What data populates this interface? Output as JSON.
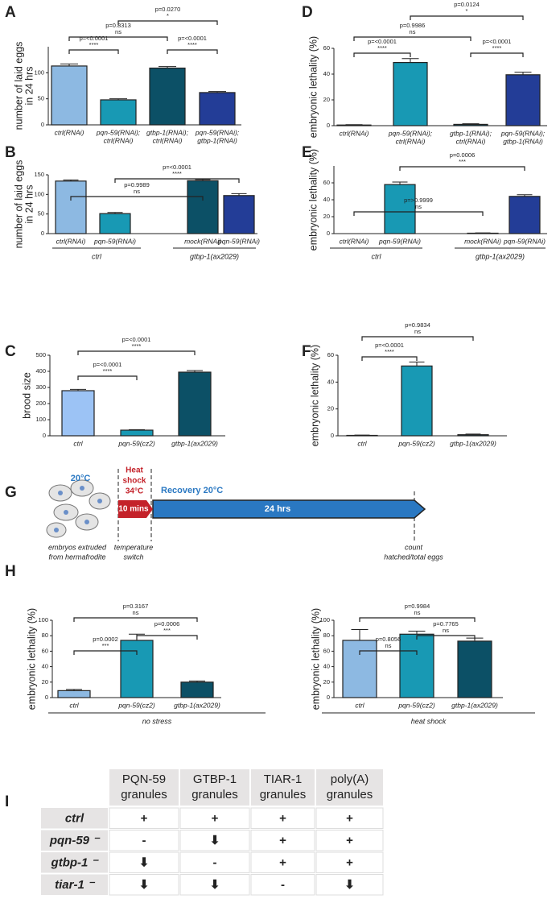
{
  "chart_data": [
    {
      "type": "bar",
      "panel": "A",
      "ylabel": [
        "number of laid eggs",
        "in 24 hrs"
      ],
      "categories": [
        [
          "ctrl(RNAi)"
        ],
        [
          "pqn-59(RNAi);",
          "ctrl(RNAi)"
        ],
        [
          "gtbp-1(RNAi);",
          "ctrl(RNAi)"
        ],
        [
          "pqn-59(RNAi);",
          "gtbp-1(RNAi)"
        ]
      ],
      "values": [
        113,
        48,
        109,
        62
      ],
      "errors": [
        4,
        2,
        3,
        2
      ],
      "colors": [
        "#8db9e2",
        "#1899b4",
        "#0c5066",
        "#233d97"
      ],
      "ylim": [
        0,
        150
      ],
      "yticks": [
        0,
        50,
        100
      ],
      "comparisons": [
        {
          "p": "p=<0.0001",
          "sig": "****"
        },
        {
          "p": "p=<0.0001",
          "sig": "****"
        },
        {
          "p": "p=0.8313",
          "sig": "ns"
        },
        {
          "p": "p=0.0270",
          "sig": "*"
        }
      ]
    },
    {
      "type": "bar",
      "panel": "B",
      "ylabel": [
        "number of laid eggs",
        "in 24 hrs"
      ],
      "categories": [
        [
          "ctrl(RNAi)"
        ],
        [
          "pqn-59(RNAi)"
        ],
        [
          "mock(RNAi)"
        ],
        [
          "pqn-59(RNAi)"
        ]
      ],
      "values": [
        134,
        51,
        135,
        97
      ],
      "errors": [
        3,
        3,
        3,
        5
      ],
      "colors": [
        "#8db9e2",
        "#1899b4",
        "#0c5066",
        "#233d97"
      ],
      "ylim": [
        0,
        150
      ],
      "yticks": [
        0,
        50,
        100,
        150
      ],
      "group_labels": [
        "ctrl",
        "gtbp-1(ax2029)"
      ],
      "comparisons": [
        {
          "p": "p=0.9989",
          "sig": "ns"
        },
        {
          "p": "p=<0.0001",
          "sig": "****"
        }
      ]
    },
    {
      "type": "bar",
      "panel": "C",
      "ylabel": [
        "brood size"
      ],
      "categories": [
        [
          "ctrl"
        ],
        [
          "pqn-59(cz2)"
        ],
        [
          "gtbp-1(ax2029)"
        ]
      ],
      "values": [
        280,
        35,
        395
      ],
      "errors": [
        8,
        3,
        10
      ],
      "colors": [
        "#9cc3f5",
        "#1899b4",
        "#0c5066"
      ],
      "ylim": [
        0,
        500
      ],
      "yticks": [
        0,
        100,
        200,
        300,
        400,
        500
      ],
      "comparisons": [
        {
          "p": "p=<0.0001",
          "sig": "****"
        },
        {
          "p": "p=<0.0001",
          "sig": "****"
        }
      ]
    },
    {
      "type": "bar",
      "panel": "D",
      "ylabel": [
        "embryonic lethality (%)"
      ],
      "categories": [
        [
          "ctrl(RNAi)"
        ],
        [
          "pqn-59(RNAi);",
          "ctrl(RNAi)"
        ],
        [
          "gtbp-1(RNAi);",
          "ctrl(RNAi)"
        ],
        [
          "pqn-59(RNAi);",
          "gtbp-1(RNAi)"
        ]
      ],
      "values": [
        0.5,
        49,
        1,
        39.5
      ],
      "errors": [
        0.3,
        3,
        0.5,
        2
      ],
      "colors": [
        "#8db9e2",
        "#1899b4",
        "#0c5066",
        "#233d97"
      ],
      "ylim": [
        0,
        60
      ],
      "yticks": [
        0,
        20,
        40,
        60
      ],
      "comparisons": [
        {
          "p": "p=<0.0001",
          "sig": "****"
        },
        {
          "p": "p=<0.0001",
          "sig": "****"
        },
        {
          "p": "p=0.9986",
          "sig": "ns"
        },
        {
          "p": "p=0.0124",
          "sig": "*"
        }
      ]
    },
    {
      "type": "bar",
      "panel": "E",
      "ylabel": [
        "embryonic lethality (%)"
      ],
      "categories": [
        [
          "ctrl(RNAi)"
        ],
        [
          "pqn-59(RNAi)"
        ],
        [
          "mock(RNAi)"
        ],
        [
          "pqn-59(RNAi)"
        ]
      ],
      "values": [
        0,
        58,
        0.5,
        44
      ],
      "errors": [
        0,
        3,
        0.3,
        2
      ],
      "colors": [
        "#8db9e2",
        "#1899b4",
        "#0c5066",
        "#233d97"
      ],
      "ylim": [
        0,
        80
      ],
      "yticks": [
        0,
        20,
        40,
        60
      ],
      "group_labels": [
        "ctrl",
        "gtbp-1(ax2029)"
      ],
      "comparisons": [
        {
          "p": "p=>0.9999",
          "sig": "ns"
        },
        {
          "p": "p=0.0006",
          "sig": "***"
        }
      ]
    },
    {
      "type": "bar",
      "panel": "F",
      "ylabel": [
        "embryonic lethality (%)"
      ],
      "categories": [
        [
          "ctrl"
        ],
        [
          "pqn-59(cz2)"
        ],
        [
          "gtbp-1(ax2029)"
        ]
      ],
      "values": [
        0.3,
        52,
        0.8
      ],
      "errors": [
        0.2,
        3,
        0.5
      ],
      "colors": [
        "#8db9e2",
        "#1899b4",
        "#0c5066"
      ],
      "ylim": [
        0,
        60
      ],
      "yticks": [
        0,
        20,
        40,
        60
      ],
      "comparisons": [
        {
          "p": "p=<0.0001",
          "sig": "****"
        },
        {
          "p": "p=0.9834",
          "sig": "ns"
        }
      ]
    },
    {
      "type": "bar",
      "panel": "H",
      "ylabel": [
        "embryonic lethality (%)"
      ],
      "categories": [
        [
          "ctrl"
        ],
        [
          "pqn-59(cz2)"
        ],
        [
          "gtbp-1(ax2029)"
        ]
      ],
      "values": [
        9,
        74,
        20
      ],
      "errors": [
        1.5,
        8,
        1.5
      ],
      "colors": [
        "#8db9e2",
        "#1899b4",
        "#0c5066"
      ],
      "ylim": [
        0,
        100
      ],
      "yticks": [
        0,
        20,
        40,
        60,
        80,
        100
      ],
      "group_labels": [
        "no stress"
      ],
      "comparisons": [
        {
          "p": "p=0.0002",
          "sig": "***"
        },
        {
          "p": "p=0.0006",
          "sig": "***"
        },
        {
          "p": "p=0.3167",
          "sig": "ns"
        }
      ]
    },
    {
      "type": "bar",
      "ylabel": [
        "embryonic lethality (%)"
      ],
      "categories": [
        [
          "ctrl"
        ],
        [
          "pqn-59(cz2)"
        ],
        [
          "gtbp-1(ax2029)"
        ]
      ],
      "values": [
        74,
        82,
        73
      ],
      "errors": [
        14,
        4,
        4
      ],
      "colors": [
        "#8db9e2",
        "#1899b4",
        "#0c5066"
      ],
      "ylim": [
        0,
        100
      ],
      "yticks": [
        0,
        20,
        40,
        60,
        80,
        100
      ],
      "group_labels": [
        "heat shock"
      ],
      "comparisons": [
        {
          "p": "p=0.8056",
          "sig": "ns"
        },
        {
          "p": "p=0.7765",
          "sig": "ns"
        },
        {
          "p": "p=0.9984",
          "sig": "ns"
        }
      ]
    }
  ],
  "diagram": {
    "panel": "G",
    "temp_start": "20°C",
    "heat_shock": [
      "Heat",
      "shock",
      "34°C"
    ],
    "recovery": "Recovery 20°C",
    "heat_duration": "10 mins",
    "recovery_duration": "24 hrs",
    "start_note": [
      "embryos extruded",
      "from hermafrodite"
    ],
    "switch_note": [
      "temperature",
      "switch"
    ],
    "end_note": [
      "count",
      "hatched/total eggs"
    ]
  },
  "table": {
    "panel": "I",
    "header": [
      [
        "PQN-59",
        "granules"
      ],
      [
        "GTBP-1",
        "granules"
      ],
      [
        "TIAR-1",
        "granules"
      ],
      [
        "poly(A)",
        "granules"
      ]
    ],
    "rows": [
      {
        "label": "ctrl",
        "cells": [
          "+",
          "+",
          "+",
          "+"
        ]
      },
      {
        "label": "pqn-59 ⁻",
        "cells": [
          "-",
          "⬇",
          "+",
          "+"
        ]
      },
      {
        "label": "gtbp-1 ⁻",
        "cells": [
          "⬇",
          "-",
          "+",
          "+"
        ]
      },
      {
        "label": "tiar-1 ⁻",
        "cells": [
          "⬇",
          "⬇",
          "-",
          "⬇"
        ]
      }
    ]
  }
}
